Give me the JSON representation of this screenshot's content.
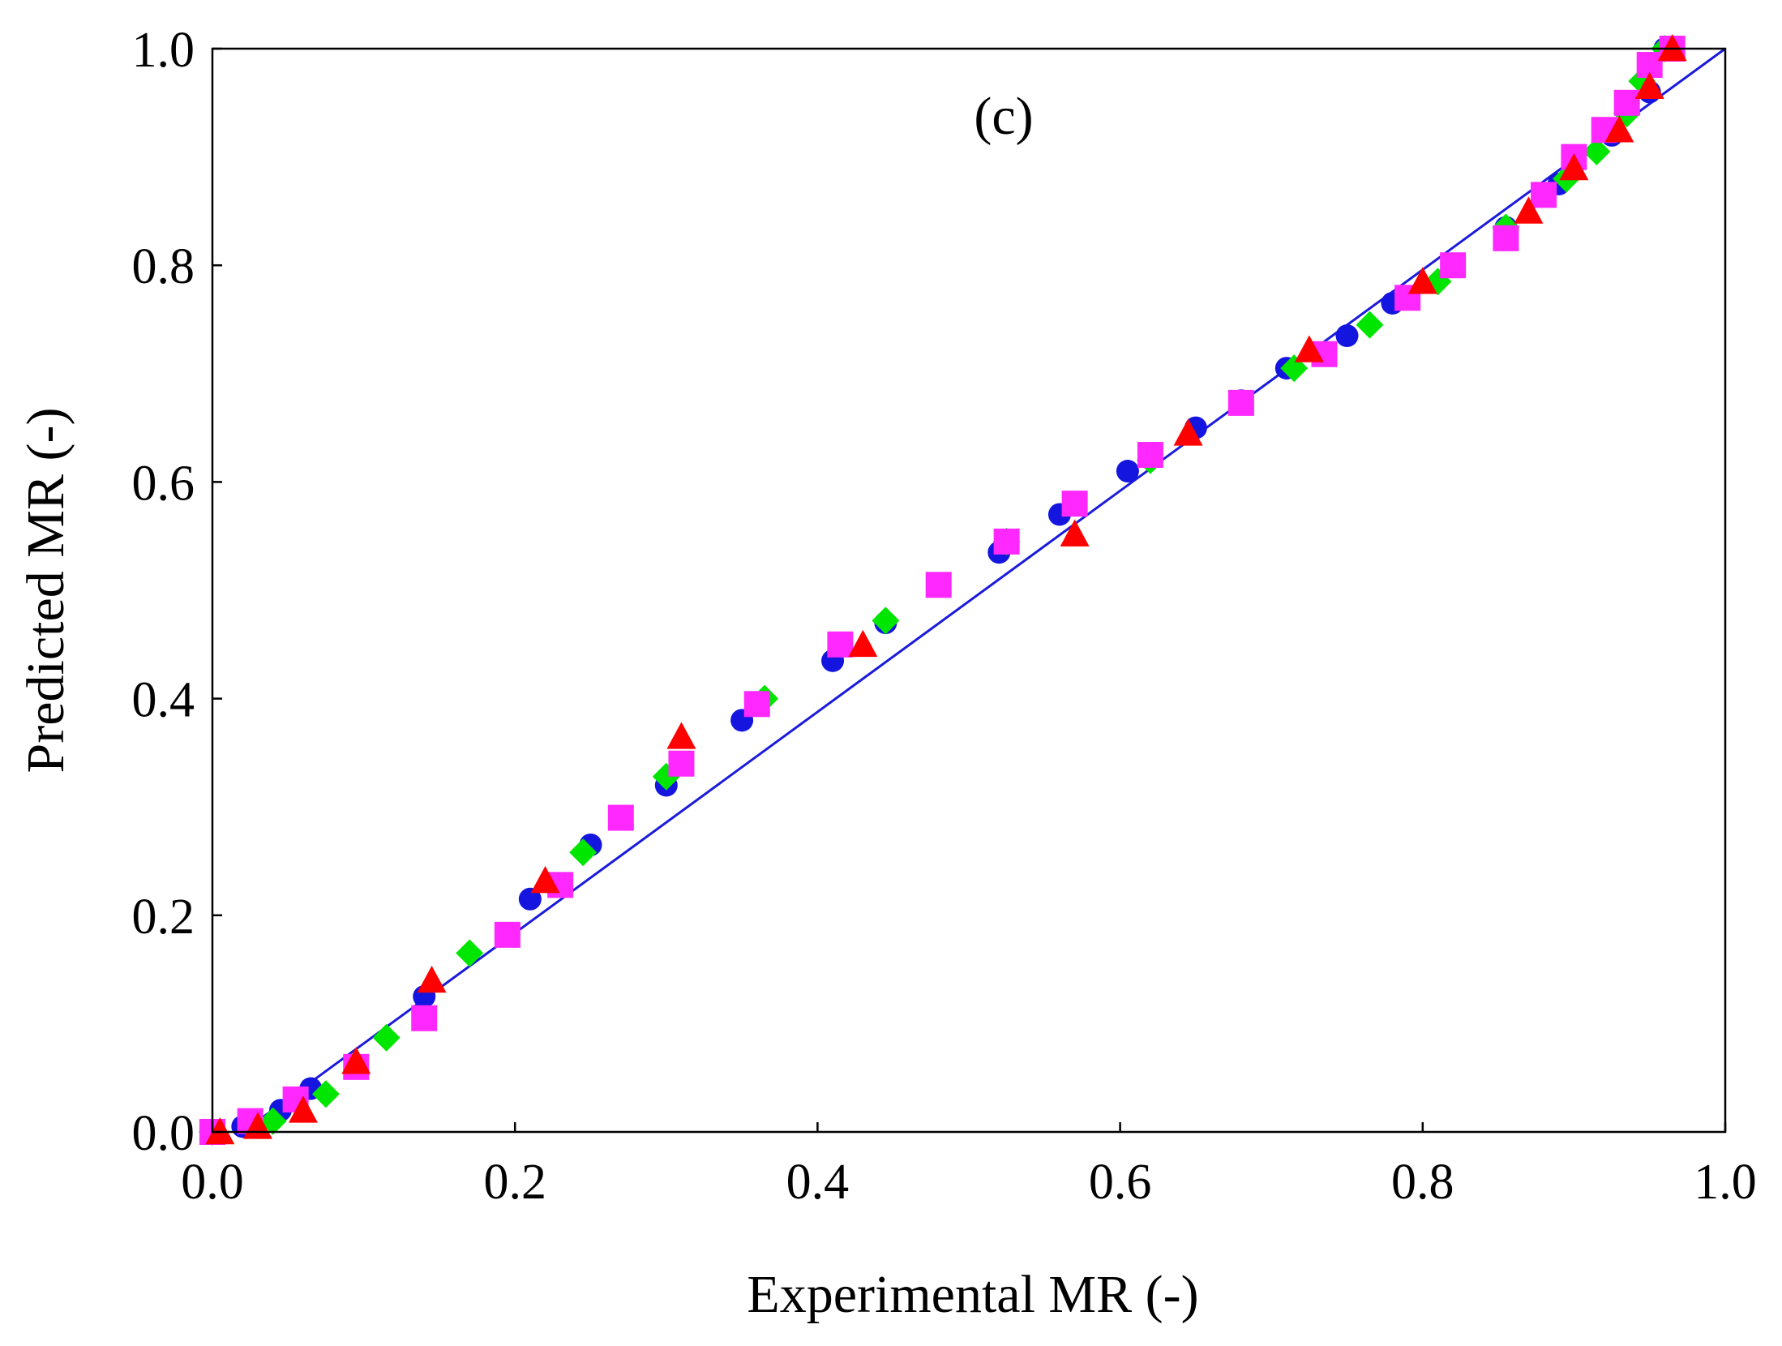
{
  "chart_data": {
    "type": "scatter",
    "panel_label": "(c)",
    "title": "",
    "xlabel": "Experimental MR (-)",
    "ylabel": "Predicted MR (-)",
    "xlim": [
      0.0,
      1.0
    ],
    "ylim": [
      0.0,
      1.0
    ],
    "x_ticks": [
      "0.0",
      "0.2",
      "0.4",
      "0.6",
      "0.8",
      "1.0"
    ],
    "y_ticks": [
      "0.0",
      "0.2",
      "0.4",
      "0.6",
      "0.8",
      "1.0"
    ],
    "grid": false,
    "reference_line": {
      "color": "#1a1adc",
      "points": [
        [
          0.02,
          0.0
        ],
        [
          1.0,
          1.0
        ]
      ]
    },
    "series": [
      {
        "name": "blue circles",
        "marker": "circle",
        "color": "#1515e0",
        "points": [
          [
            0.0,
            0.0
          ],
          [
            0.02,
            0.005
          ],
          [
            0.045,
            0.02
          ],
          [
            0.065,
            0.04
          ],
          [
            0.14,
            0.125
          ],
          [
            0.21,
            0.215
          ],
          [
            0.25,
            0.265
          ],
          [
            0.3,
            0.32
          ],
          [
            0.35,
            0.38
          ],
          [
            0.41,
            0.435
          ],
          [
            0.445,
            0.47
          ],
          [
            0.52,
            0.535
          ],
          [
            0.56,
            0.57
          ],
          [
            0.605,
            0.61
          ],
          [
            0.65,
            0.65
          ],
          [
            0.68,
            0.675
          ],
          [
            0.71,
            0.705
          ],
          [
            0.75,
            0.735
          ],
          [
            0.78,
            0.765
          ],
          [
            0.855,
            0.835
          ],
          [
            0.89,
            0.875
          ],
          [
            0.925,
            0.92
          ],
          [
            0.95,
            0.96
          ],
          [
            0.96,
            1.0
          ]
        ]
      },
      {
        "name": "green diamonds",
        "marker": "diamond",
        "color": "#00e600",
        "points": [
          [
            0.0,
            0.0
          ],
          [
            0.04,
            0.01
          ],
          [
            0.075,
            0.035
          ],
          [
            0.115,
            0.087
          ],
          [
            0.17,
            0.165
          ],
          [
            0.245,
            0.258
          ],
          [
            0.3,
            0.328
          ],
          [
            0.365,
            0.4
          ],
          [
            0.445,
            0.472
          ],
          [
            0.525,
            0.545
          ],
          [
            0.62,
            0.62
          ],
          [
            0.715,
            0.705
          ],
          [
            0.765,
            0.745
          ],
          [
            0.81,
            0.785
          ],
          [
            0.855,
            0.835
          ],
          [
            0.895,
            0.88
          ],
          [
            0.915,
            0.905
          ],
          [
            0.935,
            0.94
          ],
          [
            0.945,
            0.97
          ],
          [
            0.96,
            1.0
          ]
        ]
      },
      {
        "name": "magenta squares",
        "marker": "square",
        "color": "#ff28ff",
        "points": [
          [
            0.0,
            0.0
          ],
          [
            0.025,
            0.01
          ],
          [
            0.055,
            0.03
          ],
          [
            0.095,
            0.06
          ],
          [
            0.14,
            0.105
          ],
          [
            0.195,
            0.182
          ],
          [
            0.23,
            0.228
          ],
          [
            0.27,
            0.29
          ],
          [
            0.31,
            0.34
          ],
          [
            0.36,
            0.395
          ],
          [
            0.415,
            0.45
          ],
          [
            0.48,
            0.505
          ],
          [
            0.525,
            0.545
          ],
          [
            0.57,
            0.58
          ],
          [
            0.62,
            0.625
          ],
          [
            0.68,
            0.673
          ],
          [
            0.735,
            0.718
          ],
          [
            0.79,
            0.77
          ],
          [
            0.82,
            0.8
          ],
          [
            0.855,
            0.825
          ],
          [
            0.88,
            0.865
          ],
          [
            0.9,
            0.9
          ],
          [
            0.92,
            0.925
          ],
          [
            0.935,
            0.95
          ],
          [
            0.95,
            0.985
          ],
          [
            0.965,
            1.0
          ]
        ]
      },
      {
        "name": "red triangles",
        "marker": "triangle",
        "color": "#ff0000",
        "points": [
          [
            0.005,
            0.0
          ],
          [
            0.03,
            0.005
          ],
          [
            0.06,
            0.02
          ],
          [
            0.095,
            0.065
          ],
          [
            0.145,
            0.14
          ],
          [
            0.22,
            0.232
          ],
          [
            0.31,
            0.365
          ],
          [
            0.43,
            0.45
          ],
          [
            0.57,
            0.552
          ],
          [
            0.645,
            0.645
          ],
          [
            0.725,
            0.722
          ],
          [
            0.8,
            0.785
          ],
          [
            0.87,
            0.85
          ],
          [
            0.9,
            0.89
          ],
          [
            0.93,
            0.925
          ],
          [
            0.95,
            0.965
          ],
          [
            0.965,
            1.0
          ]
        ]
      }
    ]
  }
}
